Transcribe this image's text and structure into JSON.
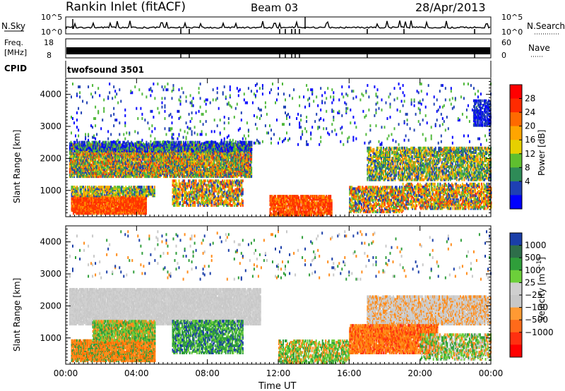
{
  "header": {
    "station": "Rankin Inlet (fitACF)",
    "beam": "Beam 03",
    "date": "28/Apr/2013"
  },
  "top_panels": {
    "nsky_label": "N.Sky",
    "nsky_ticks": [
      "10^5",
      "10^0"
    ],
    "nsearch_label": "N.Search",
    "nsearch_ticks": [
      "10^5",
      "10^0"
    ],
    "freq_label_1": "Freq.",
    "freq_label_2": "[MHz]",
    "freq_ticks": [
      "18",
      "8"
    ],
    "nave_label": "Nave",
    "nave_ticks": [
      "60",
      "0"
    ],
    "cpid_label": "CPID",
    "cpid_value": "twofsound 3501"
  },
  "chart_data": [
    {
      "type": "heatmap",
      "title": "",
      "ylabel": "Slant Range [km]",
      "xlabel": "",
      "x_ticks": [
        "00:00",
        "04:00",
        "08:00",
        "12:00",
        "16:00",
        "20:00",
        "00:00"
      ],
      "y_ticks": [
        "1000",
        "2000",
        "3000",
        "4000"
      ],
      "xlim": [
        0,
        24
      ],
      "ylim": [
        180,
        4500
      ],
      "colorbar_label": "Power [dB]",
      "colorbar_ticks": [
        "4",
        "8",
        "12",
        "16",
        "20",
        "24",
        "28"
      ],
      "colorbar_colors": [
        "#0000ff",
        "#1e40b4",
        "#2e8b57",
        "#5fbf2f",
        "#e6d000",
        "#ffa500",
        "#ff6a00",
        "#ff2a00",
        "#ff0000"
      ]
    },
    {
      "type": "heatmap",
      "title": "",
      "ylabel": "Slant Range [km]",
      "xlabel": "Time UT",
      "x_ticks": [
        "00:00",
        "04:00",
        "08:00",
        "12:00",
        "16:00",
        "20:00",
        "00:00"
      ],
      "y_ticks": [
        "1000",
        "2000",
        "3000",
        "4000"
      ],
      "xlim": [
        0,
        24
      ],
      "ylim": [
        180,
        4500
      ],
      "colorbar_label": "Velocity [m s^-1]",
      "colorbar_ticks": [
        "1000",
        "500",
        "100",
        "25",
        "−25",
        "−100",
        "−500",
        "−1000"
      ],
      "colorbar_colors": [
        "#1a3ea8",
        "#2e6e4a",
        "#2f9e3a",
        "#6ccf3a",
        "#cfcfcf",
        "#c8c8c8",
        "#ff9a33",
        "#ff6a1a",
        "#ff3010",
        "#ff0000"
      ]
    }
  ]
}
